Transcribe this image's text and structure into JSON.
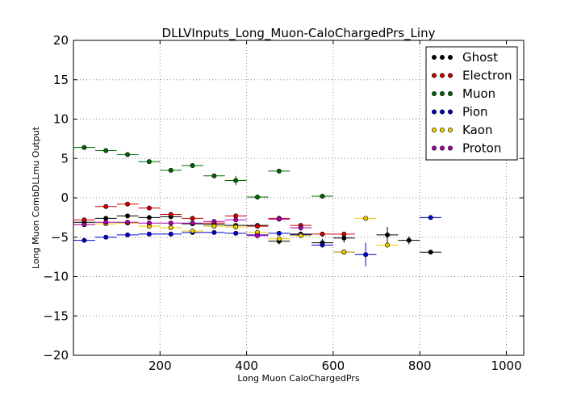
{
  "chart_data": {
    "type": "scatter",
    "title": "DLLVInputs_Long_Muon-CaloChargedPrs_Liny",
    "xlabel": "Long Muon CaloChargedPrs",
    "ylabel": "Long Muon CombDLLmu Output",
    "xlim": [
      0,
      1040
    ],
    "ylim": [
      -20,
      20
    ],
    "xticks": [
      200,
      400,
      600,
      800,
      1000
    ],
    "yticks": [
      -20,
      -15,
      -10,
      -5,
      0,
      5,
      10,
      15,
      20
    ],
    "grid": true,
    "legend_position": "top-right",
    "x_half_width": 25,
    "series": [
      {
        "name": "Ghost",
        "color": "#000000",
        "x": [
          25,
          75,
          125,
          175,
          225,
          275,
          325,
          375,
          425,
          475,
          525,
          575,
          625,
          675,
          725,
          775,
          825
        ],
        "y": [
          -3.1,
          -2.6,
          -2.3,
          -2.5,
          -2.4,
          -3.3,
          -3.4,
          -3.5,
          -3.5,
          -5.5,
          -4.6,
          -5.7,
          -5.1,
          null,
          -4.7,
          -5.4,
          -6.9
        ],
        "err": [
          0.2,
          0.2,
          0.2,
          0.2,
          0.2,
          0.2,
          0.2,
          0.2,
          0.2,
          0.4,
          0.3,
          0.5,
          0.6,
          0,
          1.0,
          0.5,
          0.2
        ]
      },
      {
        "name": "Electron",
        "color": "#cc0000",
        "x": [
          25,
          75,
          125,
          175,
          225,
          275,
          325,
          375,
          425,
          475,
          525,
          575,
          625
        ],
        "y": [
          -2.8,
          -1.1,
          -0.8,
          -1.3,
          -2.1,
          -2.6,
          -3.2,
          -2.3,
          -3.6,
          -2.6,
          -3.5,
          -4.6,
          -4.6
        ],
        "err": [
          0.2,
          0.2,
          0.2,
          0.2,
          0.2,
          0.2,
          0.2,
          0.3,
          0.3,
          0.3,
          0.3,
          0.3,
          0.3
        ]
      },
      {
        "name": "Muon",
        "color": "#006600",
        "x": [
          25,
          75,
          125,
          175,
          225,
          275,
          325,
          375,
          425,
          475,
          575
        ],
        "y": [
          6.4,
          6.0,
          5.5,
          4.6,
          3.5,
          4.1,
          2.8,
          2.2,
          0.1,
          3.4,
          0.2
        ],
        "err": [
          0.2,
          0.2,
          0.2,
          0.2,
          0.2,
          0.2,
          0.3,
          0.6,
          0.2,
          0.2,
          0.2
        ]
      },
      {
        "name": "Pion",
        "color": "#0000cc",
        "x": [
          25,
          75,
          125,
          175,
          225,
          275,
          325,
          375,
          425,
          475,
          525,
          575,
          625,
          675,
          825
        ],
        "y": [
          -5.4,
          -5.0,
          -4.7,
          -4.6,
          -4.6,
          -4.4,
          -4.4,
          -4.5,
          -4.7,
          -4.5,
          -4.7,
          -6.0,
          -6.9,
          -7.2,
          -2.5
        ],
        "err": [
          0.2,
          0.2,
          0.2,
          0.2,
          0.2,
          0.2,
          0.2,
          0.2,
          0.2,
          0.2,
          0.2,
          0.3,
          0.3,
          1.5,
          0.2
        ]
      },
      {
        "name": "Kaon",
        "color": "#eecc00",
        "x": [
          25,
          75,
          125,
          175,
          225,
          275,
          325,
          375,
          425,
          475,
          525,
          625,
          675,
          725
        ],
        "y": [
          -3.4,
          -3.3,
          -3.2,
          -3.6,
          -3.8,
          -4.2,
          -3.6,
          -3.7,
          -4.4,
          -5.2,
          -4.8,
          -6.9,
          -2.6,
          -6.0
        ],
        "err": [
          0.2,
          0.2,
          0.2,
          0.2,
          0.2,
          0.2,
          0.2,
          0.2,
          0.3,
          0.3,
          0.3,
          0.3,
          0.2,
          0.3
        ]
      },
      {
        "name": "Proton",
        "color": "#aa00aa",
        "x": [
          25,
          75,
          125,
          175,
          225,
          275,
          325,
          375,
          425,
          475,
          525
        ],
        "y": [
          -3.4,
          -3.1,
          -3.1,
          -3.2,
          -3.2,
          -3.2,
          -3.0,
          -2.8,
          -4.8,
          -2.7,
          -3.8
        ],
        "err": [
          0.2,
          0.2,
          0.2,
          0.2,
          0.2,
          0.2,
          0.2,
          0.2,
          0.4,
          0.3,
          0.4
        ]
      }
    ]
  }
}
